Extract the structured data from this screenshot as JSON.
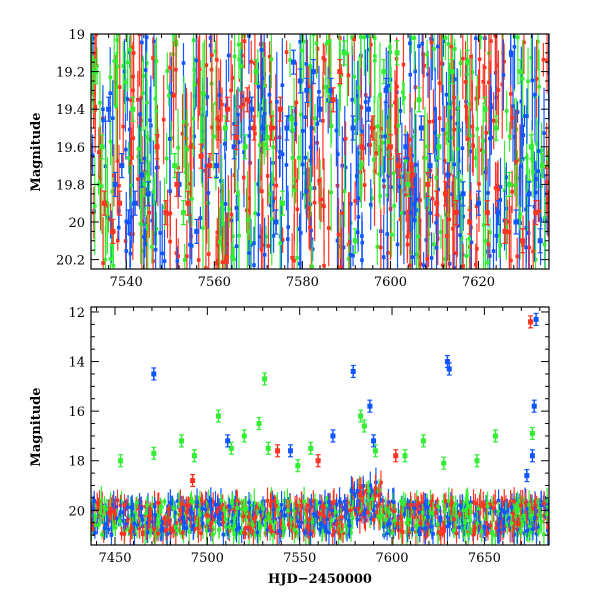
{
  "chart_data": [
    {
      "type": "scatter",
      "title": "",
      "xlabel": "",
      "ylabel": "Magnitude",
      "xlim": [
        7532,
        7636
      ],
      "ylim": [
        20.25,
        19.0
      ],
      "y_inverted": true,
      "grid": false,
      "xtick_labels": [
        "7540",
        "7560",
        "7580",
        "7600",
        "7620"
      ],
      "ytick_labels": [
        "19",
        "19.2",
        "19.4",
        "19.6",
        "19.8",
        "20",
        "20.2"
      ],
      "series": [
        {
          "color": "#33ee33",
          "points": [
            [
              7533,
              19.2
            ],
            [
              7534.5,
              19.6
            ],
            [
              7541.5,
              19.4
            ],
            [
              7544,
              19.8
            ],
            [
              7551,
              19.7
            ],
            [
              7553,
              19.95
            ],
            [
              7562.5,
              19.5
            ],
            [
              7567,
              19.6
            ],
            [
              7569.5,
              19.2
            ],
            [
              7572,
              19.55
            ],
            [
              7575.5,
              19.9
            ],
            [
              7577.5,
              19.45
            ],
            [
              7586,
              19.3
            ],
            [
              7589.5,
              19.1
            ],
            [
              7592,
              20.1
            ],
            [
              7598.5,
              19.2
            ],
            [
              7601.5,
              19.1
            ],
            [
              7604,
              19.8
            ],
            [
              7606.5,
              19.35
            ],
            [
              7611,
              19.6
            ],
            [
              7614,
              19.2
            ],
            [
              7617.5,
              19.15
            ],
            [
              7621.5,
              19.4
            ],
            [
              7624,
              19.5
            ],
            [
              7627,
              19.8
            ],
            [
              7629.5,
              19.2
            ],
            [
              7632,
              19.6
            ],
            [
              7634.5,
              19.7
            ]
          ]
        },
        {
          "color": "#1155ff",
          "points": [
            [
              7536,
              19.4
            ],
            [
              7537.5,
              19.8
            ],
            [
              7539,
              19.7
            ],
            [
              7540.5,
              20.0
            ],
            [
              7542,
              19.9
            ],
            [
              7543.5,
              19.75
            ],
            [
              7545,
              19.85
            ],
            [
              7552,
              19.8
            ],
            [
              7556,
              20.05
            ],
            [
              7560.5,
              19.7
            ],
            [
              7564.5,
              19.6
            ],
            [
              7568.5,
              19.4
            ],
            [
              7571,
              19.5
            ],
            [
              7574,
              20.0
            ],
            [
              7576.5,
              19.5
            ],
            [
              7578,
              19.15
            ],
            [
              7579.5,
              19.25
            ],
            [
              7581,
              19.3
            ],
            [
              7582.5,
              19.2
            ],
            [
              7584,
              19.4
            ],
            [
              7586.5,
              19.3
            ],
            [
              7591.5,
              19.5
            ],
            [
              7595,
              19.4
            ],
            [
              7599,
              19.3
            ],
            [
              7603.5,
              19.6
            ],
            [
              7607,
              19.5
            ],
            [
              7609,
              19.7
            ],
            [
              7613,
              19.75
            ],
            [
              7616.5,
              19.85
            ],
            [
              7620,
              19.9
            ],
            [
              7624.5,
              19.95
            ],
            [
              7628.5,
              20.0
            ],
            [
              7631.5,
              19.85
            ],
            [
              7634,
              20.1
            ]
          ]
        },
        {
          "color": "#ff3322",
          "points": [
            [
              7535,
              19.9
            ],
            [
              7537,
              20.05
            ],
            [
              7538.5,
              19.9
            ],
            [
              7547,
              19.6
            ],
            [
              7549,
              19.95
            ],
            [
              7551.5,
              19.8
            ],
            [
              7554,
              19.9
            ],
            [
              7557,
              19.65
            ],
            [
              7559,
              19.7
            ],
            [
              7561,
              19.5
            ],
            [
              7563,
              19.4
            ],
            [
              7565,
              19.55
            ],
            [
              7567.5,
              19.35
            ],
            [
              7569,
              19.5
            ],
            [
              7573,
              19.5
            ],
            [
              7575,
              19.4
            ],
            [
              7587,
              19.35
            ],
            [
              7588.5,
              19.2
            ],
            [
              7593.5,
              19.6
            ],
            [
              7596,
              19.5
            ],
            [
              7600,
              19.6
            ],
            [
              7602,
              19.7
            ],
            [
              7605,
              19.75
            ],
            [
              7608.5,
              19.8
            ],
            [
              7610.5,
              19.9
            ],
            [
              7612.5,
              19.85
            ],
            [
              7615,
              19.95
            ],
            [
              7618,
              20.0
            ],
            [
              7622,
              19.95
            ],
            [
              7626,
              20.05
            ],
            [
              7630,
              20.1
            ],
            [
              7633,
              19.95
            ]
          ]
        }
      ]
    },
    {
      "type": "scatter",
      "title": "",
      "xlabel": "HJD−2450000",
      "ylabel": "Magnitude",
      "xlim": [
        7437,
        7685
      ],
      "ylim": [
        21.4,
        11.8
      ],
      "y_inverted": true,
      "grid": false,
      "xtick_labels": [
        "7450",
        "7500",
        "7550",
        "7600",
        "7650"
      ],
      "ytick_labels": [
        "12",
        "14",
        "16",
        "18",
        "20"
      ],
      "series": [
        {
          "color": "#33ee33",
          "points": [
            [
              7453,
              18.0
            ],
            [
              7471,
              17.7
            ],
            [
              7486,
              17.2
            ],
            [
              7493,
              17.8
            ],
            [
              7506,
              16.2
            ],
            [
              7513,
              17.5
            ],
            [
              7520,
              17.0
            ],
            [
              7528,
              16.5
            ],
            [
              7531,
              14.7
            ],
            [
              7533,
              17.5
            ],
            [
              7549,
              18.2
            ],
            [
              7556,
              17.5
            ],
            [
              7583,
              16.2
            ],
            [
              7585,
              16.6
            ],
            [
              7591,
              17.6
            ],
            [
              7607,
              17.8
            ],
            [
              7617,
              17.2
            ],
            [
              7628,
              18.1
            ],
            [
              7646,
              18.0
            ],
            [
              7656,
              17.0
            ],
            [
              7676,
              16.9
            ]
          ]
        },
        {
          "color": "#1155ff",
          "points": [
            [
              7471,
              14.5
            ],
            [
              7511,
              17.2
            ],
            [
              7545,
              17.6
            ],
            [
              7568,
              17.0
            ],
            [
              7579,
              14.4
            ],
            [
              7588,
              15.8
            ],
            [
              7590,
              17.2
            ],
            [
              7630,
              14.0
            ],
            [
              7631,
              14.3
            ],
            [
              7678,
              12.3
            ],
            [
              7677,
              15.8
            ],
            [
              7676,
              17.8
            ],
            [
              7673,
              18.6
            ]
          ]
        },
        {
          "color": "#ff3322",
          "points": [
            [
              7492,
              18.8
            ],
            [
              7538,
              17.6
            ],
            [
              7560,
              18.0
            ],
            [
              7602,
              17.8
            ],
            [
              7675,
              12.4
            ]
          ]
        }
      ]
    }
  ]
}
